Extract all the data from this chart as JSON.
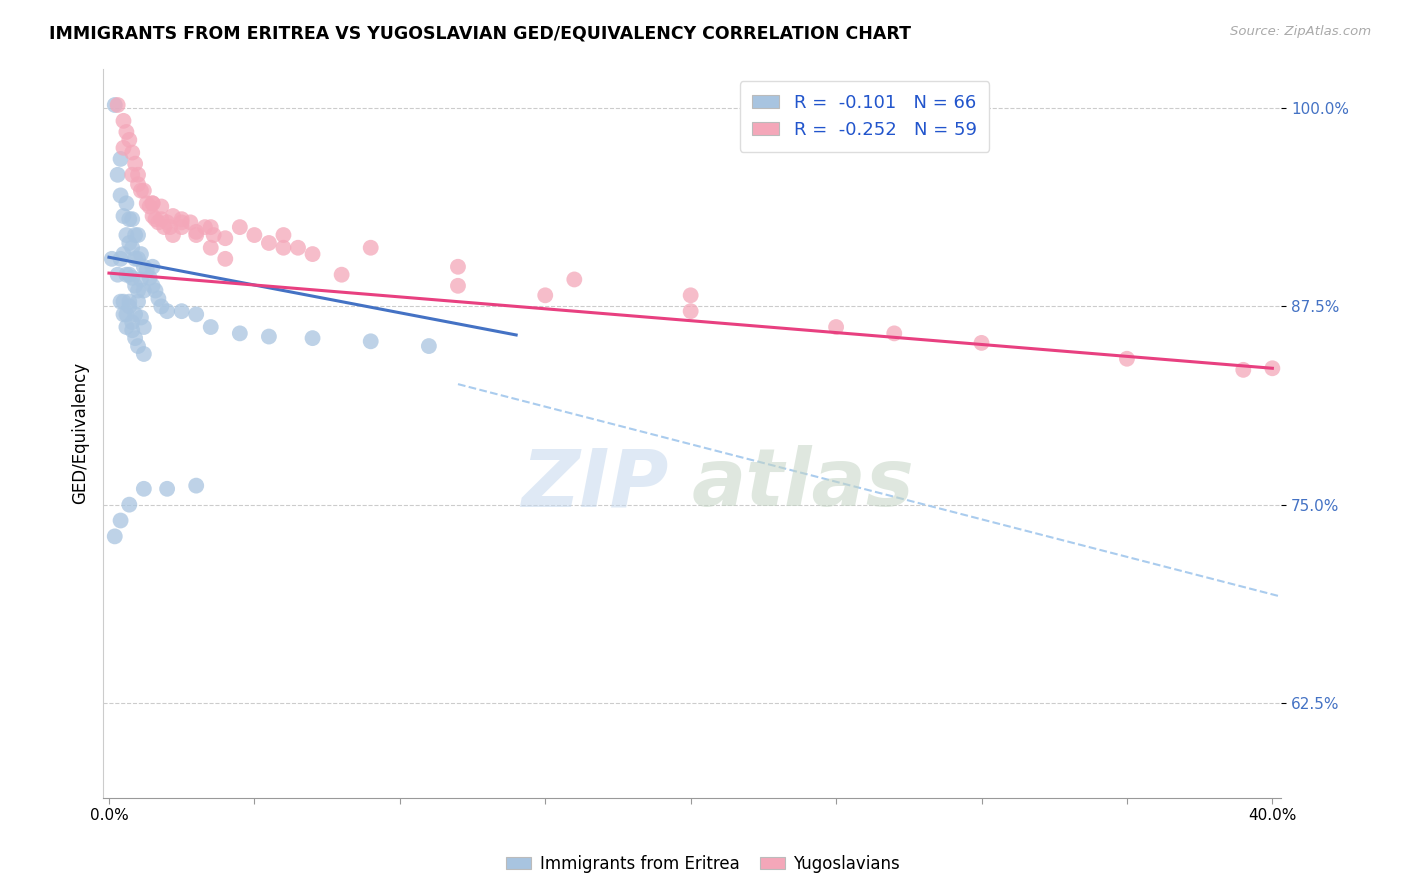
{
  "title": "IMMIGRANTS FROM ERITREA VS YUGOSLAVIAN GED/EQUIVALENCY CORRELATION CHART",
  "source": "Source: ZipAtlas.com",
  "ylabel": "GED/Equivalency",
  "yticks": [
    0.625,
    0.75,
    0.875,
    1.0
  ],
  "ytick_labels": [
    "62.5%",
    "75.0%",
    "87.5%",
    "100.0%"
  ],
  "xlim": [
    -0.002,
    0.403
  ],
  "ylim": [
    0.565,
    1.025
  ],
  "color_eritrea": "#a8c4e0",
  "color_yugoslavian": "#f4a7b9",
  "trendline_eritrea_color": "#4472c4",
  "trendline_yugoslavian_color": "#e84080",
  "trendline_dashed_color": "#aaccee",
  "watermark_zip": "ZIP",
  "watermark_atlas": "atlas",
  "eritrea_x": [
    0.001,
    0.002,
    0.003,
    0.004,
    0.004,
    0.005,
    0.005,
    0.006,
    0.006,
    0.006,
    0.007,
    0.007,
    0.007,
    0.007,
    0.008,
    0.008,
    0.008,
    0.009,
    0.009,
    0.009,
    0.01,
    0.01,
    0.01,
    0.011,
    0.011,
    0.012,
    0.012,
    0.013,
    0.014,
    0.015,
    0.015,
    0.016,
    0.017,
    0.003,
    0.004,
    0.005,
    0.006,
    0.007,
    0.008,
    0.009,
    0.01,
    0.011,
    0.012,
    0.004,
    0.005,
    0.006,
    0.008,
    0.009,
    0.01,
    0.012,
    0.018,
    0.02,
    0.025,
    0.03,
    0.035,
    0.045,
    0.055,
    0.07,
    0.09,
    0.11,
    0.002,
    0.004,
    0.007,
    0.012,
    0.02,
    0.03
  ],
  "eritrea_y": [
    0.905,
    1.002,
    0.958,
    0.968,
    0.945,
    0.932,
    0.908,
    0.94,
    0.92,
    0.895,
    0.93,
    0.915,
    0.895,
    0.878,
    0.93,
    0.912,
    0.893,
    0.92,
    0.905,
    0.888,
    0.92,
    0.905,
    0.885,
    0.908,
    0.892,
    0.9,
    0.885,
    0.898,
    0.893,
    0.9,
    0.888,
    0.885,
    0.88,
    0.895,
    0.905,
    0.878,
    0.87,
    0.875,
    0.865,
    0.87,
    0.878,
    0.868,
    0.862,
    0.878,
    0.87,
    0.862,
    0.86,
    0.855,
    0.85,
    0.845,
    0.875,
    0.872,
    0.872,
    0.87,
    0.862,
    0.858,
    0.856,
    0.855,
    0.853,
    0.85,
    0.73,
    0.74,
    0.75,
    0.76,
    0.76,
    0.762
  ],
  "yugoslavian_x": [
    0.003,
    0.005,
    0.006,
    0.007,
    0.008,
    0.009,
    0.01,
    0.011,
    0.013,
    0.014,
    0.015,
    0.016,
    0.017,
    0.018,
    0.019,
    0.02,
    0.021,
    0.022,
    0.025,
    0.028,
    0.03,
    0.033,
    0.036,
    0.04,
    0.045,
    0.05,
    0.055,
    0.06,
    0.065,
    0.07,
    0.008,
    0.01,
    0.012,
    0.015,
    0.018,
    0.022,
    0.025,
    0.03,
    0.035,
    0.04,
    0.08,
    0.12,
    0.15,
    0.2,
    0.25,
    0.3,
    0.35,
    0.39,
    0.005,
    0.015,
    0.025,
    0.035,
    0.06,
    0.09,
    0.12,
    0.16,
    0.2,
    0.27,
    0.4
  ],
  "yugoslavian_y": [
    1.002,
    0.992,
    0.985,
    0.98,
    0.972,
    0.965,
    0.958,
    0.948,
    0.94,
    0.938,
    0.932,
    0.93,
    0.928,
    0.93,
    0.925,
    0.928,
    0.925,
    0.92,
    0.925,
    0.928,
    0.922,
    0.925,
    0.92,
    0.918,
    0.925,
    0.92,
    0.915,
    0.912,
    0.912,
    0.908,
    0.958,
    0.952,
    0.948,
    0.94,
    0.938,
    0.932,
    0.928,
    0.92,
    0.912,
    0.905,
    0.895,
    0.888,
    0.882,
    0.872,
    0.862,
    0.852,
    0.842,
    0.835,
    0.975,
    0.94,
    0.93,
    0.925,
    0.92,
    0.912,
    0.9,
    0.892,
    0.882,
    0.858,
    0.836
  ],
  "blue_trend_x": [
    0.0,
    0.14
  ],
  "blue_trend_y": [
    0.906,
    0.857
  ],
  "pink_trend_x": [
    0.0,
    0.4
  ],
  "pink_trend_y": [
    0.896,
    0.836
  ],
  "dash_trend_x": [
    0.12,
    0.403
  ],
  "dash_trend_y": [
    0.826,
    0.692
  ]
}
